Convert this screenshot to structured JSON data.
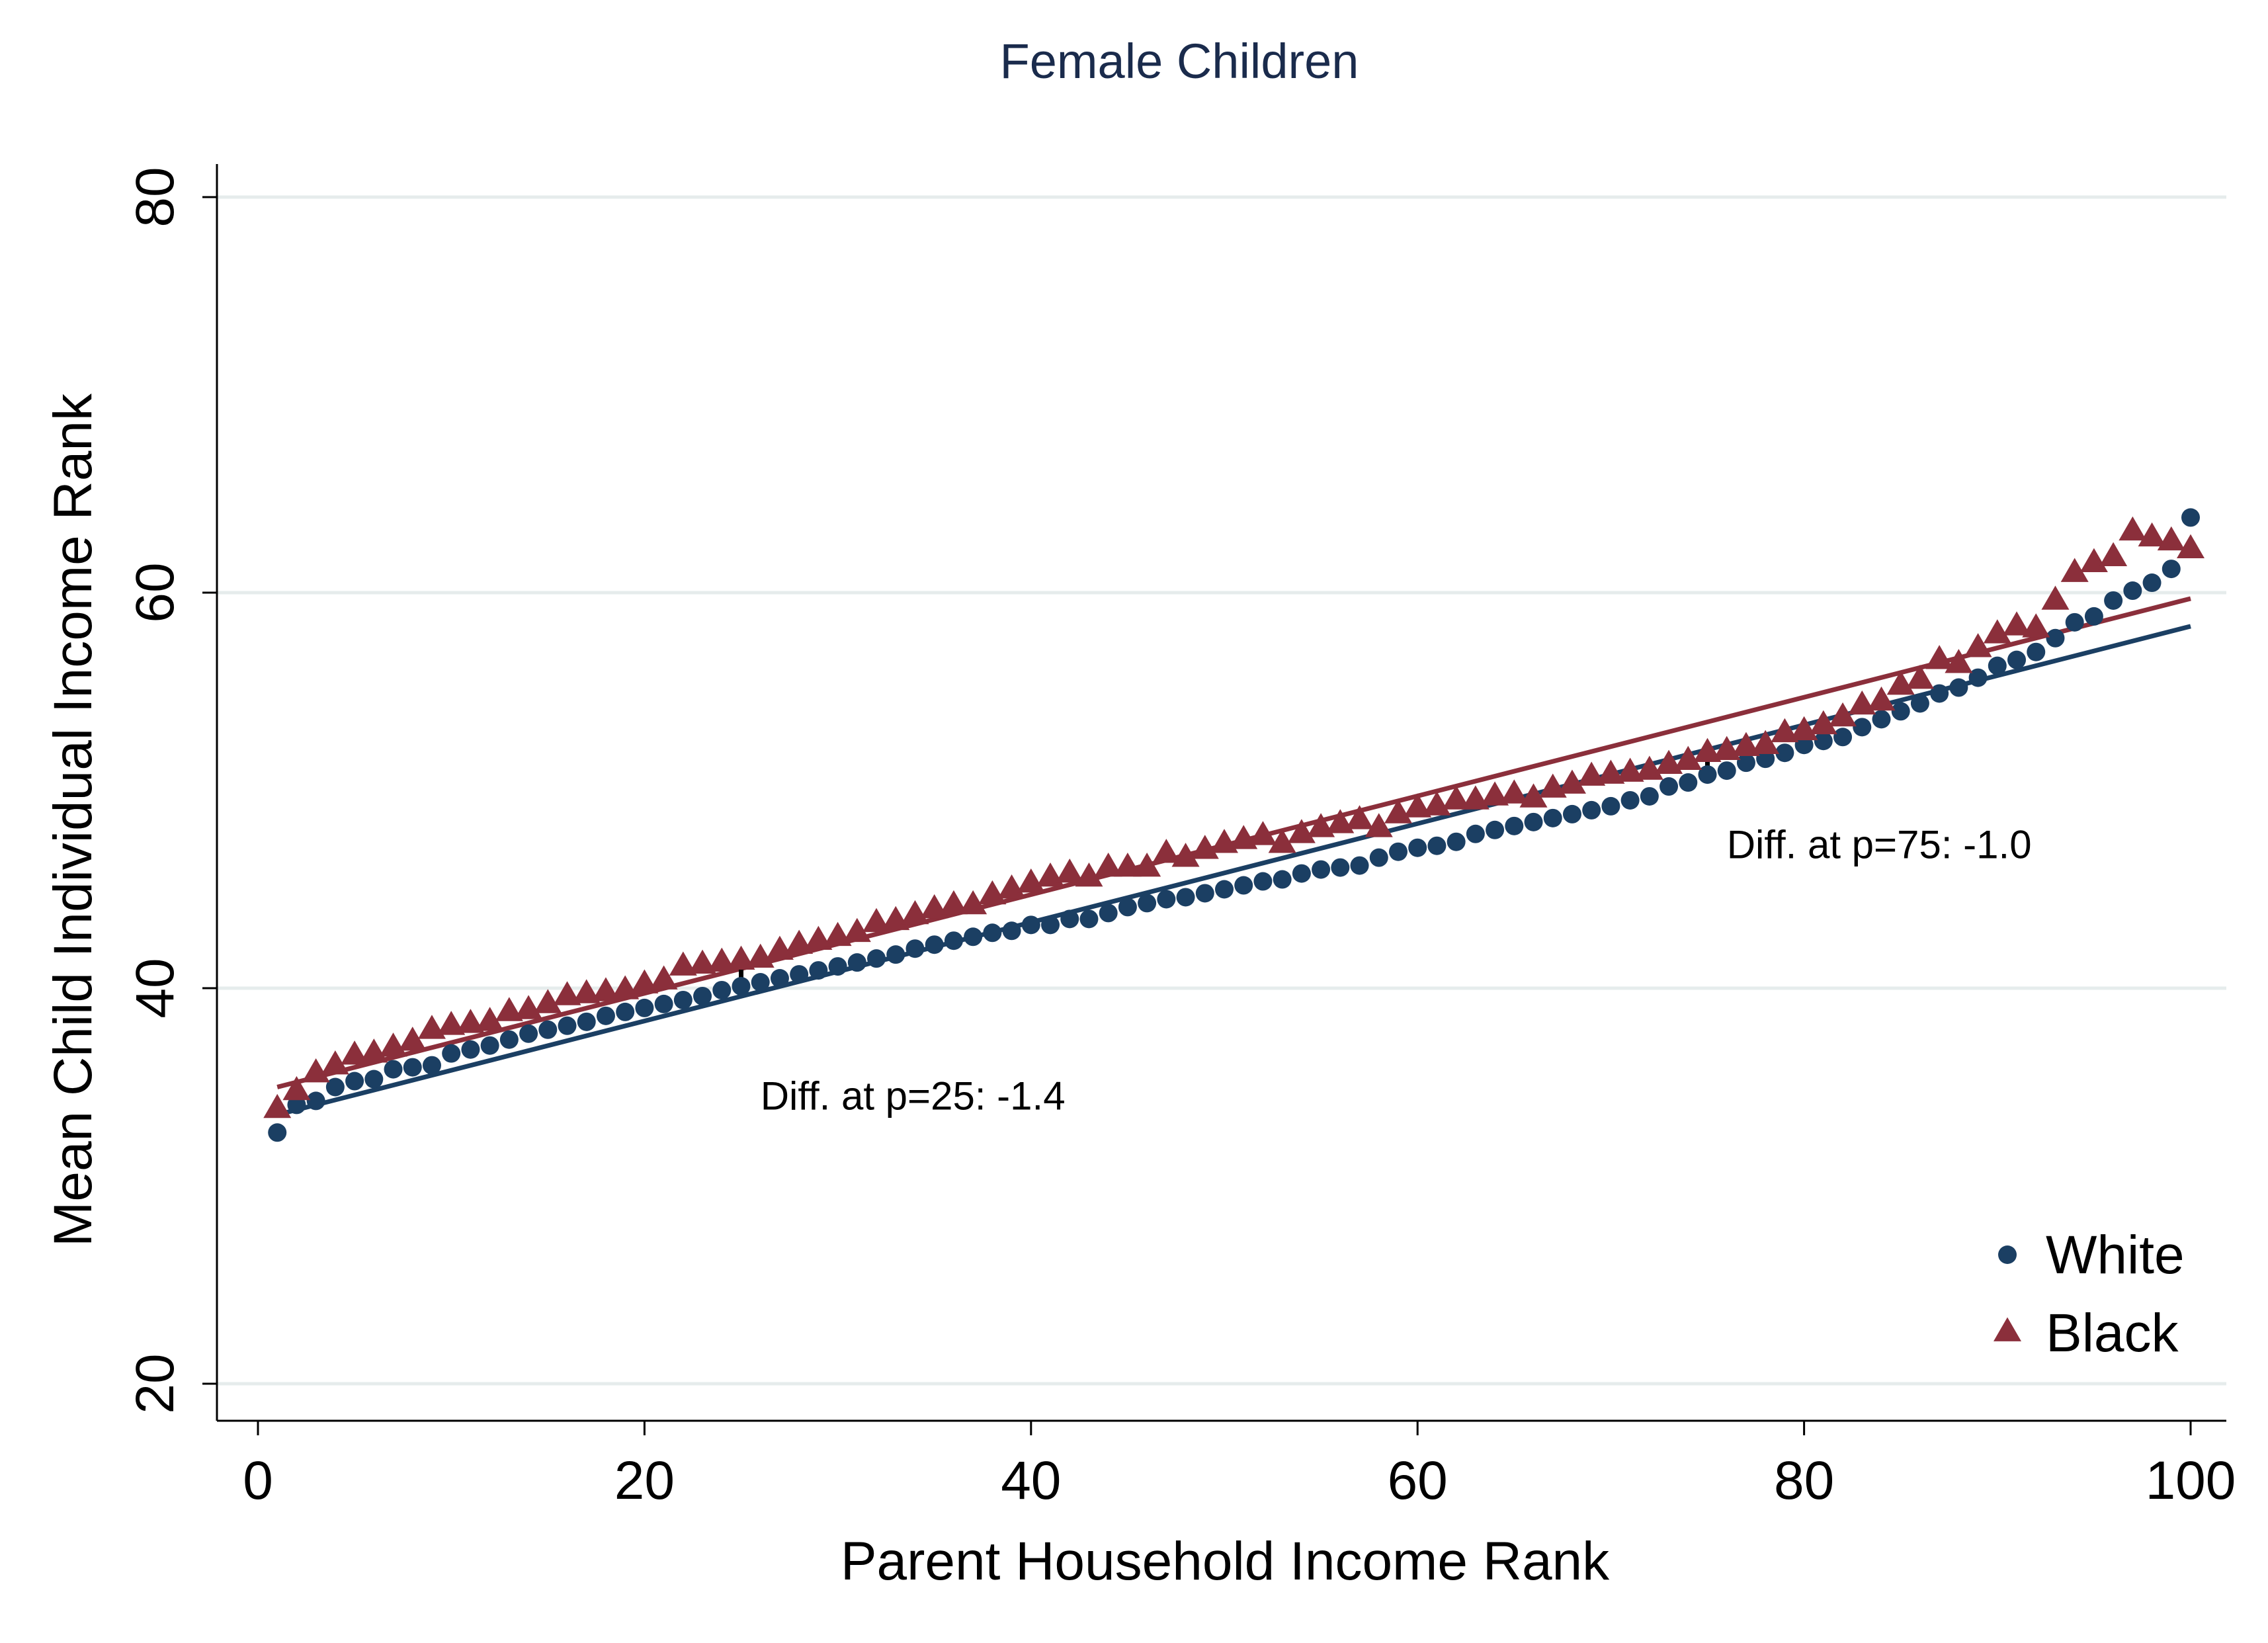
{
  "chart_data": {
    "type": "scatter",
    "title": "Female Children",
    "xlabel": "Parent Household Income Rank",
    "ylabel": "Mean Child Individual Income Rank",
    "xlim": [
      0,
      100
    ],
    "ylim": [
      20,
      80
    ],
    "xticks": [
      0,
      20,
      40,
      60,
      80,
      100
    ],
    "yticks": [
      20,
      40,
      60,
      80
    ],
    "grid": "horizontal",
    "legend_position": "bottom-right",
    "colors": {
      "title": "#1a2b4c",
      "white": "#1b3f63",
      "black": "#8b2f3b",
      "grid": "#e6ecec",
      "axis": "#000000"
    },
    "series": [
      {
        "name": "White",
        "marker": "circle",
        "x": [
          1,
          2,
          3,
          4,
          5,
          6,
          7,
          8,
          9,
          10,
          11,
          12,
          13,
          14,
          15,
          16,
          17,
          18,
          19,
          20,
          21,
          22,
          23,
          24,
          25,
          26,
          27,
          28,
          29,
          30,
          31,
          32,
          33,
          34,
          35,
          36,
          37,
          38,
          39,
          40,
          41,
          42,
          43,
          44,
          45,
          46,
          47,
          48,
          49,
          50,
          51,
          52,
          53,
          54,
          55,
          56,
          57,
          58,
          59,
          60,
          61,
          62,
          63,
          64,
          65,
          66,
          67,
          68,
          69,
          70,
          71,
          72,
          73,
          74,
          75,
          76,
          77,
          78,
          79,
          80,
          81,
          82,
          83,
          84,
          85,
          86,
          87,
          88,
          89,
          90,
          91,
          92,
          93,
          94,
          95,
          96,
          97,
          98,
          99,
          100
        ],
        "y": [
          32.7,
          34.1,
          34.3,
          35.0,
          35.3,
          35.4,
          35.9,
          36.0,
          36.1,
          36.7,
          36.9,
          37.1,
          37.4,
          37.7,
          37.9,
          38.1,
          38.3,
          38.6,
          38.8,
          39.0,
          39.2,
          39.4,
          39.6,
          39.9,
          40.1,
          40.3,
          40.5,
          40.7,
          40.9,
          41.1,
          41.3,
          41.5,
          41.7,
          42.0,
          42.2,
          42.4,
          42.6,
          42.8,
          42.9,
          43.2,
          43.2,
          43.5,
          43.5,
          43.8,
          44.1,
          44.3,
          44.5,
          44.6,
          44.8,
          45.0,
          45.2,
          45.4,
          45.5,
          45.8,
          46.0,
          46.1,
          46.2,
          46.6,
          46.9,
          47.1,
          47.2,
          47.4,
          47.8,
          48.0,
          48.2,
          48.4,
          48.6,
          48.8,
          49.0,
          49.2,
          49.5,
          49.7,
          50.2,
          50.4,
          50.8,
          51.0,
          51.4,
          51.6,
          51.9,
          52.3,
          52.5,
          52.7,
          53.2,
          53.6,
          54.0,
          54.4,
          54.9,
          55.2,
          55.7,
          56.3,
          56.6,
          57.0,
          57.7,
          58.5,
          58.8,
          59.6,
          60.1,
          60.5,
          61.2,
          63.8
        ],
        "fit": {
          "y_at_1": 33.6,
          "y_at_100": 58.3
        },
        "annotation": "Diff. at p=25: -1.4"
      },
      {
        "name": "Black",
        "marker": "triangle",
        "x": [
          1,
          2,
          3,
          4,
          5,
          6,
          7,
          8,
          9,
          10,
          11,
          12,
          13,
          14,
          15,
          16,
          17,
          18,
          19,
          20,
          21,
          22,
          23,
          24,
          25,
          26,
          27,
          28,
          29,
          30,
          31,
          32,
          33,
          34,
          35,
          36,
          37,
          38,
          39,
          40,
          41,
          42,
          43,
          44,
          45,
          46,
          47,
          48,
          49,
          50,
          51,
          52,
          53,
          54,
          55,
          56,
          57,
          58,
          59,
          60,
          61,
          62,
          63,
          64,
          65,
          66,
          67,
          68,
          69,
          70,
          71,
          72,
          73,
          74,
          75,
          76,
          77,
          78,
          79,
          80,
          81,
          82,
          83,
          84,
          85,
          86,
          87,
          88,
          89,
          90,
          91,
          92,
          93,
          94,
          95,
          96,
          97,
          98,
          99,
          100
        ],
        "y": [
          33.9,
          34.8,
          35.7,
          36.1,
          36.6,
          36.7,
          37.0,
          37.3,
          37.9,
          38.1,
          38.2,
          38.3,
          38.8,
          38.9,
          39.2,
          39.6,
          39.7,
          39.8,
          39.9,
          40.2,
          40.4,
          41.1,
          41.2,
          41.3,
          41.4,
          41.5,
          41.9,
          42.2,
          42.4,
          42.6,
          42.8,
          43.3,
          43.4,
          43.7,
          44.0,
          44.2,
          44.2,
          44.7,
          45.0,
          45.3,
          45.6,
          45.8,
          45.6,
          46.1,
          46.1,
          46.1,
          46.8,
          46.6,
          47.0,
          47.3,
          47.5,
          47.7,
          47.3,
          47.8,
          48.1,
          48.3,
          48.5,
          48.1,
          48.8,
          49.1,
          49.2,
          49.5,
          49.5,
          49.7,
          49.8,
          49.6,
          50.1,
          50.3,
          50.7,
          50.8,
          50.9,
          51.0,
          51.3,
          51.5,
          51.9,
          52.0,
          52.2,
          52.3,
          52.9,
          53.0,
          53.3,
          53.7,
          54.3,
          54.5,
          55.3,
          55.6,
          56.6,
          56.4,
          57.2,
          57.9,
          58.3,
          58.2,
          59.6,
          61.0,
          61.5,
          61.8,
          63.1,
          62.8,
          62.6,
          62.2
        ],
        "fit": {
          "y_at_1": 35.0,
          "y_at_100": 59.7
        },
        "annotation": "Diff. at p=75: -1.0"
      }
    ],
    "diff_markers": [
      {
        "x": 25,
        "y_from": 40.1,
        "y_to": 41.5
      },
      {
        "x": 75,
        "y_from": 51.1,
        "y_to": 52.1
      }
    ],
    "annotations": [
      {
        "text": "Diff. at p=25: -1.4",
        "x": 26,
        "y": 34.6
      },
      {
        "text": "Diff. at p=75: -1.0",
        "x": 76,
        "y": 47.3
      }
    ]
  }
}
